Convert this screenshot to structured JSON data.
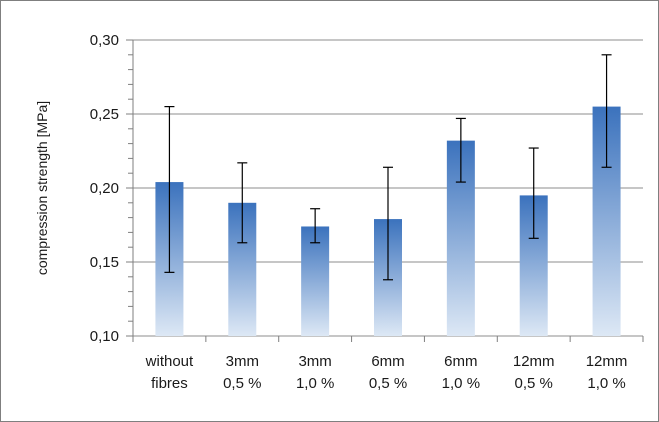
{
  "chart_data": {
    "type": "bar",
    "title": "",
    "xlabel": "",
    "ylabel": "compression strength [MPa]",
    "ylim": [
      0.1,
      0.3
    ],
    "yticks": [
      "0,10",
      "0,15",
      "0,20",
      "0,25",
      "0,30"
    ],
    "ytick_values": [
      0.1,
      0.15,
      0.2,
      0.25,
      0.3
    ],
    "grid": true,
    "legend": "none",
    "categories": [
      [
        "without",
        "fibres"
      ],
      [
        "3mm",
        "0,5 %"
      ],
      [
        "3mm",
        "1,0 %"
      ],
      [
        "6mm",
        "0,5 %"
      ],
      [
        "6mm",
        "1,0 %"
      ],
      [
        "12mm",
        "0,5 %"
      ],
      [
        "12mm",
        "1,0 %"
      ]
    ],
    "values": [
      0.204,
      0.19,
      0.174,
      0.179,
      0.232,
      0.195,
      0.255
    ],
    "error_low": [
      0.143,
      0.163,
      0.163,
      0.138,
      0.204,
      0.166,
      0.214
    ],
    "error_high": [
      0.255,
      0.217,
      0.186,
      0.214,
      0.247,
      0.227,
      0.29
    ],
    "colors": {
      "bar_top": "#3b72bd",
      "bar_bottom": "#dde8f5",
      "grid": "#8c8c8c",
      "axis": "#7f7f7f",
      "error": "#000000"
    }
  }
}
